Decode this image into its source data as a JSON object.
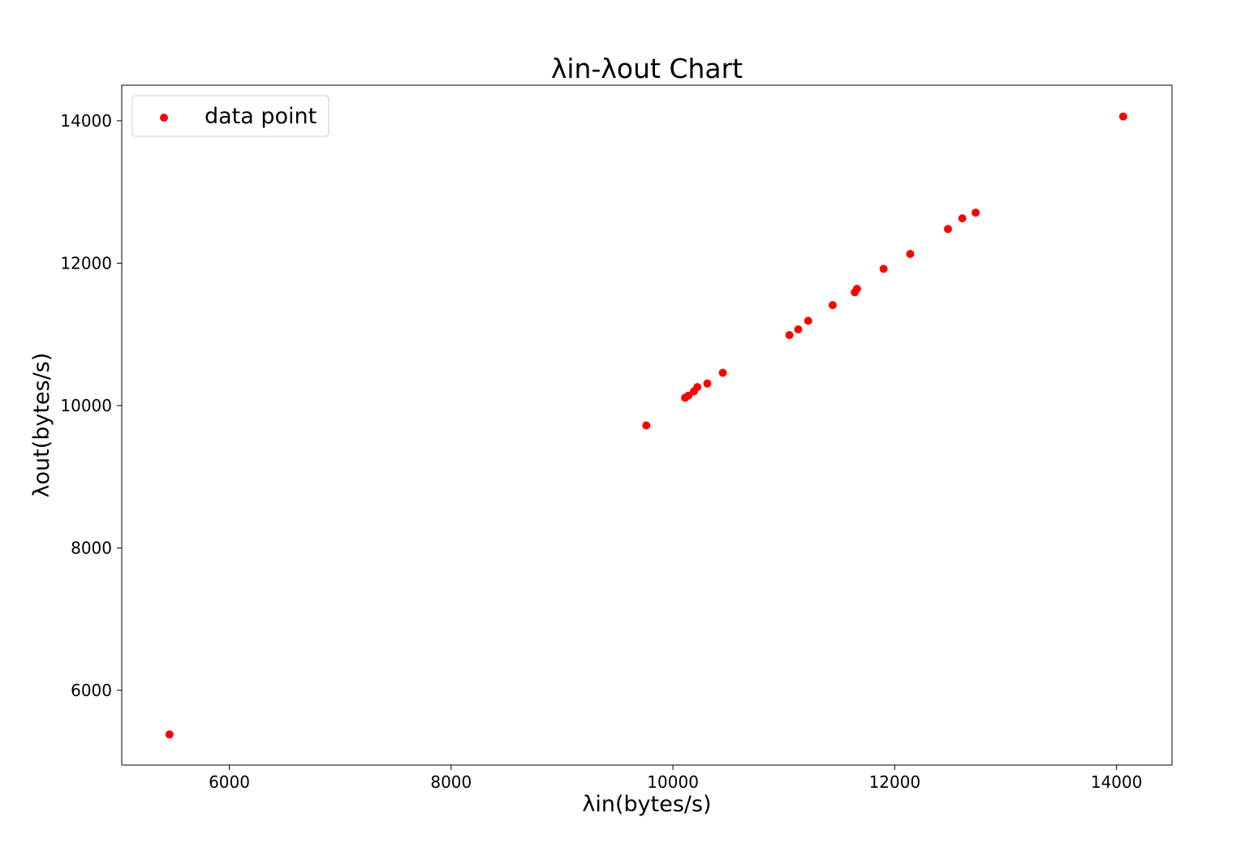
{
  "chart_data": {
    "type": "scatter",
    "title": "λin-λout Chart",
    "xlabel": "λin(bytes/s)",
    "ylabel": "λout(bytes/s)",
    "xlim": [
      5030,
      14500
    ],
    "ylim": [
      4950,
      14500
    ],
    "xticks": [
      6000,
      8000,
      10000,
      12000,
      14000
    ],
    "yticks": [
      6000,
      8000,
      10000,
      12000,
      14000
    ],
    "grid": false,
    "legend_position": "top-left",
    "series": [
      {
        "name": "data point",
        "color": "#ff0000",
        "points": [
          {
            "x": 5460,
            "y": 5380
          },
          {
            "x": 9760,
            "y": 9720
          },
          {
            "x": 10110,
            "y": 10110
          },
          {
            "x": 10140,
            "y": 10140
          },
          {
            "x": 10190,
            "y": 10200
          },
          {
            "x": 10220,
            "y": 10260
          },
          {
            "x": 10310,
            "y": 10310
          },
          {
            "x": 10450,
            "y": 10460
          },
          {
            "x": 11050,
            "y": 10990
          },
          {
            "x": 11130,
            "y": 11070
          },
          {
            "x": 11220,
            "y": 11190
          },
          {
            "x": 11440,
            "y": 11410
          },
          {
            "x": 11640,
            "y": 11590
          },
          {
            "x": 11660,
            "y": 11640
          },
          {
            "x": 11900,
            "y": 11920
          },
          {
            "x": 12140,
            "y": 12130
          },
          {
            "x": 12480,
            "y": 12480
          },
          {
            "x": 12610,
            "y": 12630
          },
          {
            "x": 12730,
            "y": 12710
          },
          {
            "x": 14060,
            "y": 14060
          }
        ]
      }
    ]
  }
}
